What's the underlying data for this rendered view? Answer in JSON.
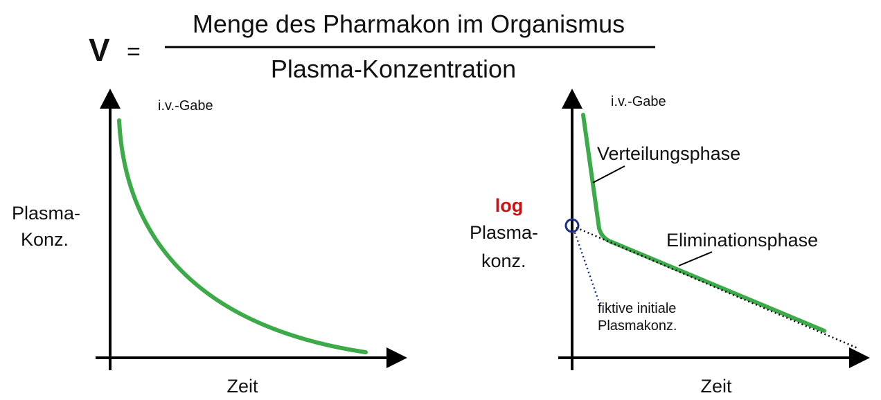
{
  "formula": {
    "lhs": "V",
    "equals": "=",
    "numerator": "Menge des Pharmakon im Organismus",
    "denominator": "Plasma-Konzentration"
  },
  "left_plot": {
    "annotation": "i.v.-Gabe",
    "ylabel_line1": "Plasma-",
    "ylabel_line2": "Konz.",
    "xlabel": "Zeit"
  },
  "right_plot": {
    "annotation": "i.v.-Gabe",
    "ylabel_log": "log",
    "ylabel_line1": "Plasma-",
    "ylabel_line2": "konz.",
    "xlabel": "Zeit",
    "phase1_label": "Verteilungsphase",
    "phase2_label": "Eliminationsphase",
    "note_line1": "fiktive initiale",
    "note_line2": "Plasmakonz."
  },
  "colors": {
    "curve": "#3daa4a",
    "axis": "#000000",
    "log_label": "#cc1111",
    "marker": "#1a2f8c",
    "extrapolation_line": "#000000",
    "note_line": "#1a2f8c"
  }
}
